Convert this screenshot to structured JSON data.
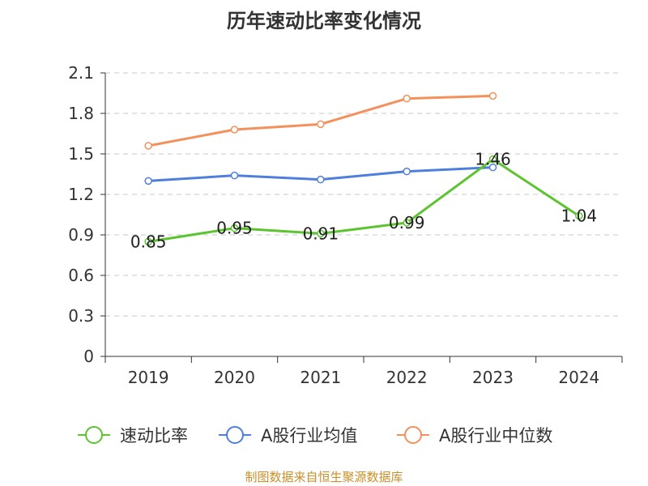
{
  "chart_data": {
    "type": "line",
    "title": "历年速动比率变化情况",
    "categories": [
      "2019",
      "2020",
      "2021",
      "2022",
      "2023",
      "2024"
    ],
    "y_ticks": [
      "0",
      "0.3",
      "0.6",
      "0.9",
      "1.2",
      "1.5",
      "1.8",
      "2.1"
    ],
    "ylim": [
      0,
      2.1
    ],
    "grid": true,
    "legend_position": "bottom",
    "series": [
      {
        "name": "速动比率",
        "color": "#5cc42f",
        "values": [
          0.85,
          0.95,
          0.91,
          0.99,
          1.46,
          1.04
        ],
        "labels": [
          "0.85",
          "0.95",
          "0.91",
          "0.99",
          "1.46",
          "1.04"
        ]
      },
      {
        "name": "A股行业均值",
        "color": "#4f7fdc",
        "values": [
          1.3,
          1.34,
          1.31,
          1.37,
          1.4,
          null
        ]
      },
      {
        "name": "A股行业中位数",
        "color": "#f4905c",
        "values": [
          1.56,
          1.68,
          1.72,
          1.91,
          1.93,
          null
        ]
      }
    ]
  },
  "source": {
    "text": "制图数据来自恒生聚源数据库",
    "color": "#c8902a"
  }
}
